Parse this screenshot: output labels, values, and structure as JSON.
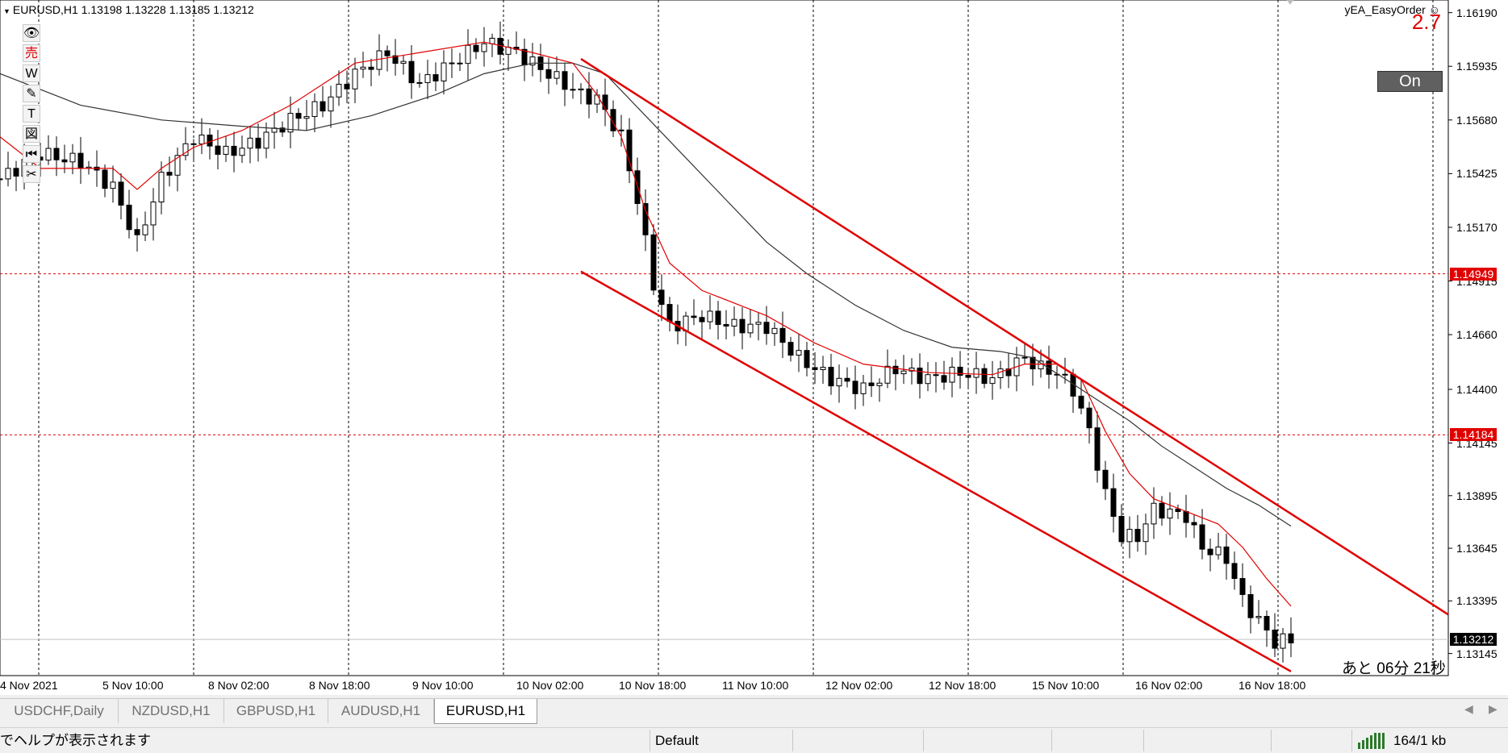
{
  "window": {
    "symbol_header": "EURUSD,H1  1.13198 1.13228 1.13185 1.13212"
  },
  "toolbar": {
    "items": [
      {
        "glyph": "👁",
        "icon": "eye-icon"
      },
      {
        "glyph": "売",
        "icon": "sell-icon"
      },
      {
        "glyph": "W",
        "icon": "w-icon"
      },
      {
        "glyph": "✎",
        "icon": "pencil-icon"
      },
      {
        "glyph": "T",
        "icon": "text-icon"
      },
      {
        "glyph": "図",
        "icon": "chart-icon"
      },
      {
        "glyph": "⏮",
        "icon": "rewind-icon"
      },
      {
        "glyph": "✂",
        "icon": "scissors-icon"
      }
    ]
  },
  "ea": {
    "name": "yEA_EasyOrder ☺",
    "value": "2.7",
    "toggle_label": "On"
  },
  "countdown": "あと 06分 21秒",
  "chart_data": {
    "type": "candlestick",
    "symbol": "EURUSD",
    "timeframe": "H1",
    "ohlc_current": {
      "open": 1.13198,
      "high": 1.13228,
      "low": 1.13185,
      "close": 1.13212
    },
    "ylim": [
      1.1304,
      1.1625
    ],
    "y_ticks": [
      "1.16190",
      "1.15935",
      "1.15680",
      "1.15425",
      "1.15170",
      "1.14915",
      "1.14660",
      "1.14400",
      "1.14145",
      "1.13895",
      "1.13645",
      "1.13395",
      "1.13145"
    ],
    "x_ticks": [
      "4 Nov 2021",
      "5 Nov 10:00",
      "8 Nov 02:00",
      "8 Nov 18:00",
      "9 Nov 10:00",
      "10 Nov 02:00",
      "10 Nov 18:00",
      "11 Nov 10:00",
      "12 Nov 02:00",
      "12 Nov 18:00",
      "15 Nov 10:00",
      "16 Nov 02:00",
      "16 Nov 18:00"
    ],
    "grid": true,
    "marked_prices": [
      {
        "value": "1.14949",
        "color": "#e00000"
      },
      {
        "value": "1.14184",
        "color": "#e00000"
      },
      {
        "value": "1.13212",
        "color": "#000000"
      }
    ],
    "close_path": [
      [
        0,
        1.154
      ],
      [
        5,
        1.1552
      ],
      [
        10,
        1.1548
      ],
      [
        14,
        1.1536
      ],
      [
        17,
        1.151
      ],
      [
        20,
        1.154
      ],
      [
        24,
        1.156
      ],
      [
        28,
        1.1552
      ],
      [
        32,
        1.1558
      ],
      [
        36,
        1.1568
      ],
      [
        40,
        1.1575
      ],
      [
        44,
        1.159
      ],
      [
        48,
        1.16
      ],
      [
        52,
        1.1585
      ],
      [
        56,
        1.1595
      ],
      [
        60,
        1.1605
      ],
      [
        64,
        1.16
      ],
      [
        68,
        1.159
      ],
      [
        72,
        1.158
      ],
      [
        74,
        1.1578
      ],
      [
        77,
        1.156
      ],
      [
        79,
        1.153
      ],
      [
        81,
        1.149
      ],
      [
        83,
        1.147
      ],
      [
        87,
        1.1475
      ],
      [
        91,
        1.147
      ],
      [
        95,
        1.147
      ],
      [
        99,
        1.1455
      ],
      [
        103,
        1.1445
      ],
      [
        107,
        1.144
      ],
      [
        111,
        1.145
      ],
      [
        115,
        1.1445
      ],
      [
        119,
        1.1448
      ],
      [
        123,
        1.1445
      ],
      [
        127,
        1.1455
      ],
      [
        129,
        1.145
      ],
      [
        131,
        1.1448
      ],
      [
        133,
        1.144
      ],
      [
        135,
        1.142
      ],
      [
        137,
        1.139
      ],
      [
        139,
        1.137
      ],
      [
        141,
        1.137
      ],
      [
        143,
        1.1383
      ],
      [
        147,
        1.138
      ],
      [
        149,
        1.1365
      ],
      [
        152,
        1.136
      ],
      [
        154,
        1.134
      ],
      [
        156,
        1.133
      ],
      [
        158,
        1.132
      ],
      [
        160,
        1.1321
      ]
    ],
    "ma_fast": [
      [
        0,
        1.156
      ],
      [
        5,
        1.1545
      ],
      [
        10,
        1.1545
      ],
      [
        14,
        1.1545
      ],
      [
        17,
        1.1535
      ],
      [
        20,
        1.1545
      ],
      [
        24,
        1.1555
      ],
      [
        30,
        1.1563
      ],
      [
        36,
        1.1575
      ],
      [
        44,
        1.1595
      ],
      [
        52,
        1.16
      ],
      [
        60,
        1.1605
      ],
      [
        66,
        1.16
      ],
      [
        71,
        1.1595
      ],
      [
        74,
        1.158
      ],
      [
        77,
        1.156
      ],
      [
        80,
        1.1525
      ],
      [
        83,
        1.15
      ],
      [
        87,
        1.1487
      ],
      [
        95,
        1.1475
      ],
      [
        101,
        1.1462
      ],
      [
        107,
        1.1452
      ],
      [
        115,
        1.1448
      ],
      [
        123,
        1.1447
      ],
      [
        127,
        1.1452
      ],
      [
        131,
        1.1452
      ],
      [
        134,
        1.1445
      ],
      [
        137,
        1.142
      ],
      [
        140,
        1.14
      ],
      [
        143,
        1.1388
      ],
      [
        147,
        1.1382
      ],
      [
        151,
        1.1376
      ],
      [
        154,
        1.1365
      ],
      [
        157,
        1.135
      ],
      [
        160,
        1.1337
      ]
    ],
    "ma_slow": [
      [
        0,
        1.159
      ],
      [
        10,
        1.1575
      ],
      [
        20,
        1.1568
      ],
      [
        30,
        1.1565
      ],
      [
        38,
        1.1563
      ],
      [
        46,
        1.157
      ],
      [
        54,
        1.158
      ],
      [
        60,
        1.159
      ],
      [
        66,
        1.1595
      ],
      [
        71,
        1.1595
      ],
      [
        75,
        1.159
      ],
      [
        80,
        1.157
      ],
      [
        85,
        1.155
      ],
      [
        90,
        1.153
      ],
      [
        95,
        1.151
      ],
      [
        100,
        1.1495
      ],
      [
        106,
        1.148
      ],
      [
        112,
        1.1468
      ],
      [
        118,
        1.146
      ],
      [
        124,
        1.1458
      ],
      [
        128,
        1.1455
      ],
      [
        132,
        1.1445
      ],
      [
        136,
        1.1435
      ],
      [
        140,
        1.1425
      ],
      [
        144,
        1.1413
      ],
      [
        148,
        1.1403
      ],
      [
        152,
        1.1393
      ],
      [
        156,
        1.1385
      ],
      [
        160,
        1.1375
      ]
    ],
    "trend_lines": [
      {
        "from": [
          72,
          1.1597
        ],
        "to": [
          182,
          1.1333
        ],
        "color": "#e00000"
      },
      {
        "from": [
          72,
          1.1496
        ],
        "to": [
          160,
          1.1306
        ],
        "color": "#e00000"
      }
    ]
  },
  "tabs": [
    {
      "label": "USDCHF,Daily",
      "active": false
    },
    {
      "label": "NZDUSD,H1",
      "active": false
    },
    {
      "label": "GBPUSD,H1",
      "active": false
    },
    {
      "label": "AUDUSD,H1",
      "active": false
    },
    {
      "label": "EURUSD,H1",
      "active": true
    }
  ],
  "status_bar": {
    "help_text": "でヘルプが表示されます",
    "profile": "Default",
    "traffic": "164/1 kb"
  }
}
